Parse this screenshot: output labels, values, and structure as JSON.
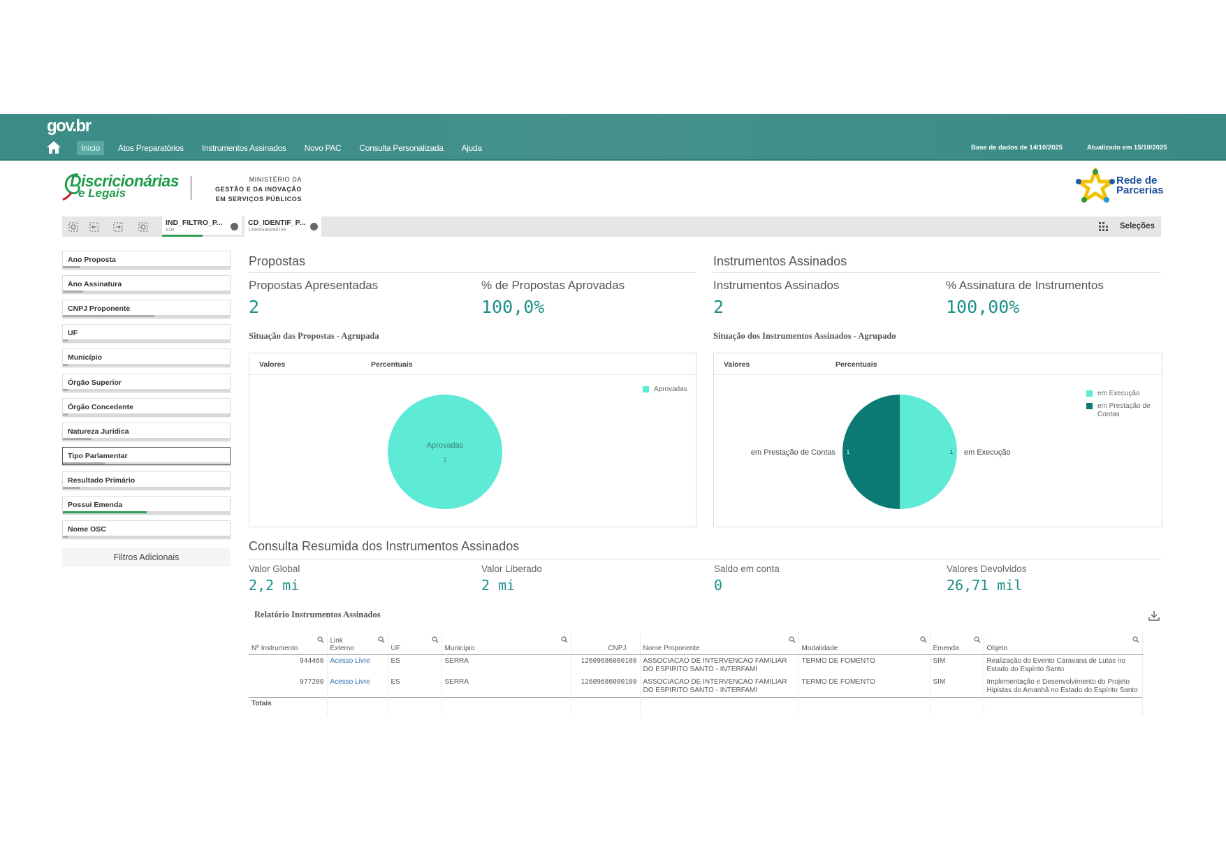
{
  "header": {
    "logo": "gov.br",
    "nav": [
      "Início",
      "Atos Preparatórios",
      "Instrumentos Assinados",
      "Novo PAC",
      "Consulta Personalizada",
      "Ajuda"
    ],
    "database": "Base de dados de 14/10/2025",
    "updated": "Atualizado em 15/10/2025"
  },
  "brand": {
    "logo_line1": "Discricionárias",
    "logo_line2": "e Legais",
    "ministry": [
      "MINISTÉRIO DA",
      "GESTÃO E DA INOVAÇÃO",
      "EM SERVIÇOS PÚBLICOS"
    ],
    "partner_line1": "Rede de",
    "partner_line2": "Parcerias"
  },
  "selections": {
    "items": [
      {
        "field": "IND_FILTRO_P...",
        "value": "SIM"
      },
      {
        "field": "CD_IDENTIF_P...",
        "value": "12609686000100"
      }
    ],
    "button": "Seleções"
  },
  "filters": {
    "items": [
      "Ano Proposta",
      "Ano Assinatura",
      "CNPJ Proponente",
      "UF",
      "Município",
      "Órgão Superior",
      "Órgão Concedente",
      "Natureza Jurídica",
      "Tipo Parlamentar",
      "Resultado Primário",
      "Possui Emenda",
      "Nome OSC"
    ],
    "button": "Filtros Adicionais"
  },
  "propostas": {
    "heading": "Propostas",
    "kpis": [
      {
        "label": "Propostas Apresentadas",
        "value": "2"
      },
      {
        "label": "% de Propostas Aprovadas",
        "value": "100,0%"
      }
    ]
  },
  "instrumentos": {
    "heading": "Instrumentos Assinados",
    "kpis": [
      {
        "label": "Instrumentos Assinados",
        "value": "2"
      },
      {
        "label": "% Assinatura de Instrumentos",
        "value": "100,00%"
      }
    ]
  },
  "chart_data": [
    {
      "type": "pie",
      "title": "Situação das Propostas - Agrupada",
      "tabs": [
        "Valores",
        "Percentuais"
      ],
      "categories": [
        "Aprovadas"
      ],
      "values": [
        2
      ],
      "colors": [
        "#5eebd6"
      ],
      "legend": "top-right"
    },
    {
      "type": "pie",
      "title": "Situação dos Instrumentos Assinados - Agrupado",
      "tabs": [
        "Valores",
        "Percentuais"
      ],
      "categories": [
        "em Execução",
        "em Prestação de Contas"
      ],
      "values": [
        1,
        1
      ],
      "colors": [
        "#5eebd6",
        "#0b7a73"
      ],
      "legend": "top-right"
    }
  ],
  "summary": {
    "heading": "Consulta Resumida dos Instrumentos Assinados",
    "kpis": [
      {
        "label": "Valor Global",
        "value": "2,2 mi"
      },
      {
        "label": "Valor Liberado",
        "value": "2 mi"
      },
      {
        "label": "Saldo em conta",
        "value": "0"
      },
      {
        "label": "Valores Devolvidos",
        "value": "26,71 mil"
      }
    ]
  },
  "report": {
    "title": "Relatório Instrumentos Assinados",
    "columns": [
      "Nº Instrumento",
      "Link Externo",
      "UF",
      "Município",
      "CNPJ",
      "Nome Proponente",
      "Modalidade",
      "Emenda",
      "Objeto"
    ],
    "rows": [
      [
        "944460",
        "Acesso Livre",
        "ES",
        "SERRA",
        "12609686000100",
        "ASSOCIACAO DE INTERVENCAO FAMILIAR DO ESPIRITO SANTO - INTERFAMI",
        "TERMO DE FOMENTO",
        "SIM",
        "Realização do Evento Caravana de Lutas no Estado do Espírito Santo"
      ],
      [
        "977200",
        "Acesso Livre",
        "ES",
        "SERRA",
        "12609686000100",
        "ASSOCIACAO DE INTERVENCAO FAMILIAR DO ESPIRITO SANTO - INTERFAMI",
        "TERMO DE FOMENTO",
        "SIM",
        "Implementação e Desenvolvimento do Projeto Hipistas do Amanhã no Estado do Espírito Santo"
      ]
    ],
    "totals_label": "Totais"
  }
}
